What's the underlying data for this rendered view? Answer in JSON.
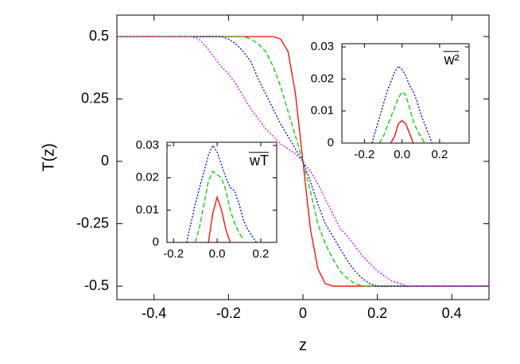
{
  "chart_data": [
    {
      "type": "line",
      "x_label": "z",
      "y_label": "T(z)",
      "x": [
        -0.5,
        -0.4,
        -0.3,
        -0.28,
        -0.26,
        -0.24,
        -0.22,
        -0.2,
        -0.18,
        -0.16,
        -0.14,
        -0.12,
        -0.1,
        -0.08,
        -0.06,
        -0.04,
        -0.02,
        0,
        0.02,
        0.04,
        0.06,
        0.08,
        0.1,
        0.12,
        0.14,
        0.16,
        0.18,
        0.2,
        0.22,
        0.24,
        0.26,
        0.28,
        0.3,
        0.4,
        0.5
      ],
      "xlim": [
        -0.5,
        0.5
      ],
      "xticks": [
        -0.4,
        -0.2,
        0,
        0.2,
        0.4
      ],
      "ylim": [
        -0.554,
        0.586
      ],
      "yticks": [
        -0.5,
        -0.25,
        0,
        0.25,
        0.5
      ],
      "series": [
        {
          "color": "#ff0000",
          "style": "solid",
          "values": [
            0.5,
            0.5,
            0.5,
            0.5,
            0.5,
            0.5,
            0.5,
            0.5,
            0.5,
            0.5,
            0.5,
            0.5,
            0.5,
            0.5,
            0.49,
            0.44,
            0.27,
            0,
            -0.27,
            -0.43,
            -0.49,
            -0.5,
            -0.5,
            -0.5,
            -0.5,
            -0.5,
            -0.5,
            -0.5,
            -0.5,
            -0.5,
            -0.5,
            -0.5,
            -0.5,
            -0.5,
            -0.5
          ]
        },
        {
          "color": "#00cc00",
          "style": "dashed",
          "values": [
            0.5,
            0.5,
            0.5,
            0.5,
            0.5,
            0.5,
            0.5,
            0.5,
            0.5,
            0.5,
            0.49,
            0.47,
            0.44,
            0.38,
            0.3,
            0.2,
            0.1,
            0,
            -0.12,
            -0.25,
            -0.33,
            -0.39,
            -0.44,
            -0.47,
            -0.49,
            -0.5,
            -0.5,
            -0.5,
            -0.5,
            -0.5,
            -0.5,
            -0.5,
            -0.5,
            -0.5,
            -0.5
          ]
        },
        {
          "color": "#0000cc",
          "style": "dotted",
          "values": [
            0.5,
            0.5,
            0.5,
            0.5,
            0.5,
            0.5,
            0.5,
            0.49,
            0.47,
            0.44,
            0.4,
            0.33,
            0.27,
            0.21,
            0.15,
            0.1,
            0.05,
            0,
            -0.08,
            -0.17,
            -0.25,
            -0.3,
            -0.35,
            -0.4,
            -0.44,
            -0.47,
            -0.49,
            -0.5,
            -0.5,
            -0.5,
            -0.5,
            -0.5,
            -0.5,
            -0.5,
            -0.5
          ]
        },
        {
          "color": "#dd00dd",
          "style": "dotted",
          "values": [
            0.5,
            0.5,
            0.5,
            0.49,
            0.46,
            0.42,
            0.38,
            0.35,
            0.31,
            0.26,
            0.21,
            0.17,
            0.13,
            0.1,
            0.07,
            0.05,
            0.03,
            0,
            -0.04,
            -0.09,
            -0.15,
            -0.21,
            -0.27,
            -0.3,
            -0.34,
            -0.38,
            -0.41,
            -0.44,
            -0.46,
            -0.48,
            -0.49,
            -0.5,
            -0.5,
            -0.5,
            -0.5
          ]
        }
      ]
    },
    {
      "type": "line",
      "title": "wT",
      "x": [
        -0.18,
        -0.16,
        -0.14,
        -0.12,
        -0.1,
        -0.08,
        -0.06,
        -0.04,
        -0.02,
        0,
        0.02,
        0.04,
        0.06,
        0.08,
        0.1,
        0.12,
        0.14,
        0.16,
        0.18,
        0.2
      ],
      "xlim": [
        -0.23,
        0.273
      ],
      "xticks": [
        -0.2,
        {
          "value": 0,
          "label": "0.0"
        },
        0.2
      ],
      "ylim": [
        0,
        0.031
      ],
      "yticks": [
        0,
        0.01,
        0.02,
        0.03
      ],
      "series": [
        {
          "color": "#ff0000",
          "style": "solid",
          "values": [
            null,
            null,
            null,
            null,
            null,
            null,
            null,
            0,
            0.009,
            0.014,
            0.01,
            0.004,
            0,
            null,
            null,
            null,
            null,
            null,
            null,
            null
          ]
        },
        {
          "color": "#00cc00",
          "style": "dashed",
          "values": [
            null,
            null,
            null,
            null,
            0,
            0.005,
            0.012,
            0.019,
            0.022,
            0.021,
            0.02,
            0.016,
            0.01,
            0.006,
            0.003,
            0.001,
            null,
            null,
            null,
            null
          ]
        },
        {
          "color": "#0000cc",
          "style": "dotted",
          "values": [
            null,
            null,
            0,
            0.006,
            0.012,
            0.017,
            0.022,
            0.027,
            0.03,
            0.028,
            0.024,
            0.02,
            0.017,
            0.016,
            0.012,
            0.007,
            0.004,
            0.002,
            0,
            null
          ]
        }
      ]
    },
    {
      "type": "line",
      "title": "w²",
      "x": [
        -0.18,
        -0.16,
        -0.14,
        -0.12,
        -0.1,
        -0.08,
        -0.06,
        -0.04,
        -0.02,
        0,
        0.02,
        0.04,
        0.06,
        0.08,
        0.1,
        0.12,
        0.14,
        0.16,
        0.18,
        0.2
      ],
      "xlim": [
        -0.32,
        0.357
      ],
      "xticks": [
        -0.2,
        {
          "value": 0,
          "label": "0.0"
        },
        0.2
      ],
      "ylim": [
        0,
        0.031
      ],
      "yticks": [
        0,
        0.01,
        0.02,
        0.03
      ],
      "series": [
        {
          "color": "#ff0000",
          "style": "solid",
          "values": [
            null,
            null,
            null,
            null,
            null,
            null,
            0,
            0.002,
            0.006,
            0.007,
            0.006,
            0.003,
            0,
            null,
            null,
            null,
            null,
            null,
            null,
            null
          ]
        },
        {
          "color": "#00cc00",
          "style": "dashed",
          "values": [
            null,
            null,
            null,
            0,
            0.002,
            0.005,
            0.008,
            0.011,
            0.014,
            0.016,
            0.015,
            0.011,
            0.007,
            0.004,
            0.002,
            0,
            null,
            null,
            null,
            null
          ]
        },
        {
          "color": "#0000cc",
          "style": "dotted",
          "values": [
            null,
            0,
            0.004,
            0.008,
            0.012,
            0.016,
            0.019,
            0.022,
            0.024,
            0.023,
            0.021,
            0.018,
            0.016,
            0.013,
            0.009,
            0.006,
            0.003,
            0,
            null,
            null
          ]
        }
      ]
    }
  ]
}
